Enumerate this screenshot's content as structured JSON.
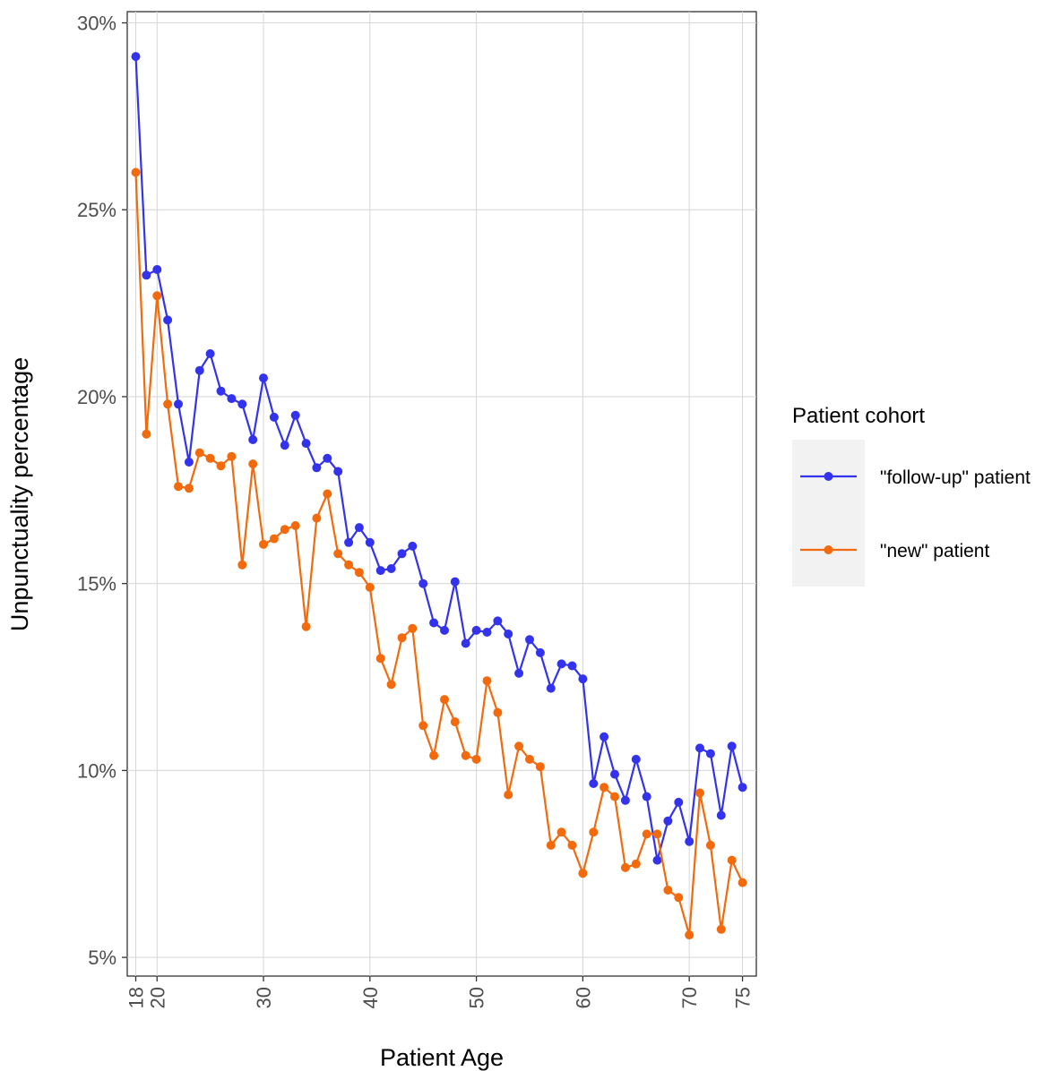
{
  "chart_data": {
    "type": "line",
    "xlabel": "Patient Age",
    "ylabel": "Unpunctuality percentage",
    "xlim": [
      17.2,
      76.3
    ],
    "ylim": [
      4.5,
      30.3
    ],
    "x_ticks": [
      18,
      20,
      30,
      40,
      50,
      60,
      70,
      75
    ],
    "y_ticks": [
      5,
      10,
      15,
      20,
      25,
      30
    ],
    "y_tick_labels": [
      "5%",
      "10%",
      "15%",
      "20%",
      "25%",
      "30%"
    ],
    "grid": true,
    "legend": {
      "title": "Patient cohort",
      "position": "right"
    },
    "x": [
      18,
      19,
      20,
      21,
      22,
      23,
      24,
      25,
      26,
      27,
      28,
      29,
      30,
      31,
      32,
      33,
      34,
      35,
      36,
      37,
      38,
      39,
      40,
      41,
      42,
      43,
      44,
      45,
      46,
      47,
      48,
      49,
      50,
      51,
      52,
      53,
      54,
      55,
      56,
      57,
      58,
      59,
      60,
      61,
      62,
      63,
      64,
      65,
      66,
      67,
      68,
      69,
      70,
      71,
      72,
      73,
      74,
      75
    ],
    "series": [
      {
        "name": "\"follow-up\" patient",
        "color": "#3333ee",
        "values": [
          29.1,
          23.25,
          23.4,
          22.05,
          19.8,
          18.25,
          20.7,
          21.15,
          20.15,
          19.95,
          19.8,
          18.85,
          20.5,
          19.45,
          18.7,
          19.5,
          18.75,
          18.1,
          18.35,
          18.0,
          16.1,
          16.5,
          16.1,
          15.35,
          15.4,
          15.8,
          16.0,
          15.0,
          13.95,
          13.75,
          15.05,
          13.4,
          13.75,
          13.7,
          14.0,
          13.65,
          12.6,
          13.5,
          13.15,
          12.2,
          12.85,
          12.8,
          12.45,
          9.65,
          10.9,
          9.9,
          9.2,
          10.3,
          9.3,
          7.6,
          8.65,
          9.15,
          8.1,
          10.6,
          10.45,
          8.8,
          10.65,
          9.55
        ]
      },
      {
        "name": "\"new\" patient",
        "color": "#f26a0c",
        "values": [
          26.0,
          19.0,
          22.7,
          19.8,
          17.6,
          17.55,
          18.5,
          18.35,
          18.15,
          18.4,
          15.5,
          18.2,
          16.05,
          16.2,
          16.45,
          16.55,
          13.85,
          16.75,
          17.4,
          15.8,
          15.5,
          15.3,
          14.9,
          13.0,
          12.3,
          13.55,
          13.8,
          11.2,
          10.4,
          11.9,
          11.3,
          10.4,
          10.3,
          12.4,
          11.55,
          9.35,
          10.65,
          10.3,
          10.1,
          8.0,
          8.35,
          8.0,
          7.25,
          8.35,
          9.55,
          9.3,
          7.4,
          7.5,
          8.3,
          8.3,
          6.8,
          6.6,
          5.6,
          9.4,
          8.0,
          5.75,
          7.6,
          7.0
        ]
      }
    ]
  }
}
